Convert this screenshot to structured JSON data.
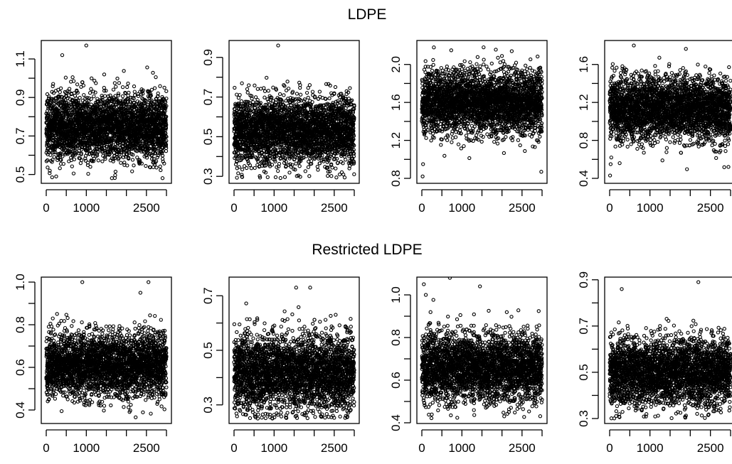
{
  "figure": {
    "rows": [
      {
        "title": "LDPE"
      },
      {
        "title": "Restricted LDPE"
      }
    ]
  },
  "chart_data": [
    {
      "type": "scatter",
      "row_title": "LDPE",
      "x_range": [
        1,
        3000
      ],
      "xticks": [
        0,
        500,
        1000,
        1500,
        2000,
        2500,
        3000
      ],
      "xtick_labels": [
        "0",
        "1000",
        "2500"
      ],
      "xtick_label_values": [
        0,
        1000,
        2500
      ],
      "ylim": [
        0.48,
        1.17
      ],
      "yticks": [
        0.5,
        0.6,
        0.7,
        0.8,
        0.9,
        1.0,
        1.1
      ],
      "ytick_labels": [
        "0.5",
        "0.7",
        "0.9",
        "1.1"
      ],
      "ytick_label_values": [
        0.5,
        0.7,
        0.9,
        1.1
      ],
      "mean": 0.75,
      "sd": 0.085,
      "n_points": 3000,
      "outliers": [
        [
          1000,
          1.17
        ],
        [
          400,
          1.12
        ]
      ]
    },
    {
      "type": "scatter",
      "row_title": "LDPE",
      "x_range": [
        1,
        3000
      ],
      "xticks": [
        0,
        500,
        1000,
        1500,
        2000,
        2500,
        3000
      ],
      "xtick_labels": [
        "0",
        "1000",
        "2500"
      ],
      "xtick_label_values": [
        0,
        1000,
        2500
      ],
      "ylim": [
        0.29,
        0.96
      ],
      "yticks": [
        0.3,
        0.4,
        0.5,
        0.6,
        0.7,
        0.8,
        0.9
      ],
      "ytick_labels": [
        "0.3",
        "0.5",
        "0.7",
        "0.9"
      ],
      "ytick_label_values": [
        0.3,
        0.5,
        0.7,
        0.9
      ],
      "mean": 0.53,
      "sd": 0.085,
      "n_points": 3000,
      "outliers": [
        [
          1100,
          0.96
        ]
      ]
    },
    {
      "type": "scatter",
      "row_title": "LDPE",
      "x_range": [
        1,
        3000
      ],
      "xticks": [
        0,
        500,
        1000,
        1500,
        2000,
        2500,
        3000
      ],
      "xtick_labels": [
        "0",
        "1000",
        "2500"
      ],
      "xtick_label_values": [
        0,
        1000,
        2500
      ],
      "ylim": [
        0.8,
        2.2
      ],
      "yticks": [
        0.8,
        1.0,
        1.2,
        1.4,
        1.6,
        1.8,
        2.0
      ],
      "ytick_labels": [
        "0.8",
        "1.2",
        "1.6",
        "2.0"
      ],
      "ytick_label_values": [
        0.8,
        1.2,
        1.6,
        2.0
      ],
      "mean": 1.6,
      "sd": 0.17,
      "n_points": 3000,
      "outliers": [
        [
          20,
          0.82
        ],
        [
          30,
          0.95
        ],
        [
          2980,
          0.87
        ],
        [
          300,
          2.18
        ]
      ]
    },
    {
      "type": "scatter",
      "row_title": "LDPE",
      "x_range": [
        1,
        3000
      ],
      "xticks": [
        0,
        500,
        1000,
        1500,
        2000,
        2500,
        3000
      ],
      "xtick_labels": [
        "0",
        "1000",
        "2500"
      ],
      "xtick_label_values": [
        0,
        1000,
        2500
      ],
      "ylim": [
        0.4,
        1.8
      ],
      "yticks": [
        0.4,
        0.6,
        0.8,
        1.0,
        1.2,
        1.4,
        1.6
      ],
      "ytick_labels": [
        "0.4",
        "0.8",
        "1.2",
        "1.6"
      ],
      "ytick_label_values": [
        0.4,
        0.8,
        1.2,
        1.6
      ],
      "mean": 1.13,
      "sd": 0.17,
      "n_points": 3000,
      "outliers": [
        [
          10,
          0.43
        ],
        [
          25,
          0.55
        ],
        [
          40,
          0.62
        ],
        [
          600,
          1.8
        ]
      ]
    },
    {
      "type": "scatter",
      "row_title": "Restricted LDPE",
      "x_range": [
        1,
        3000
      ],
      "xticks": [
        0,
        500,
        1000,
        1500,
        2000,
        2500,
        3000
      ],
      "xtick_labels": [
        "0",
        "1000",
        "2500"
      ],
      "xtick_label_values": [
        0,
        1000,
        2500
      ],
      "ylim": [
        0.36,
        1.0
      ],
      "yticks": [
        0.4,
        0.5,
        0.6,
        0.7,
        0.8,
        0.9,
        1.0
      ],
      "ytick_labels": [
        "0.4",
        "0.6",
        "0.8",
        "1.0"
      ],
      "ytick_label_values": [
        0.4,
        0.6,
        0.8,
        1.0
      ],
      "mean": 0.61,
      "sd": 0.075,
      "n_points": 3000,
      "outliers": [
        [
          900,
          1.0
        ],
        [
          2550,
          1.0
        ],
        [
          2350,
          0.95
        ]
      ]
    },
    {
      "type": "scatter",
      "row_title": "Restricted LDPE",
      "x_range": [
        1,
        3000
      ],
      "xticks": [
        0,
        500,
        1000,
        1500,
        2000,
        2500,
        3000
      ],
      "xtick_labels": [
        "0",
        "1000",
        "2500"
      ],
      "xtick_label_values": [
        0,
        1000,
        2500
      ],
      "ylim": [
        0.25,
        0.75
      ],
      "yticks": [
        0.3,
        0.4,
        0.5,
        0.6,
        0.7
      ],
      "ytick_labels": [
        "0.3",
        "0.5",
        "0.7"
      ],
      "ytick_label_values": [
        0.3,
        0.5,
        0.7
      ],
      "mean": 0.42,
      "sd": 0.07,
      "n_points": 3000,
      "outliers": [
        [
          1550,
          0.73
        ],
        [
          1900,
          0.73
        ]
      ]
    },
    {
      "type": "scatter",
      "row_title": "Restricted LDPE",
      "x_range": [
        1,
        3000
      ],
      "xticks": [
        0,
        500,
        1000,
        1500,
        2000,
        2500,
        3000
      ],
      "xtick_labels": [
        "0",
        "1000",
        "2500"
      ],
      "xtick_label_values": [
        0,
        1000,
        2500
      ],
      "ylim": [
        0.42,
        1.06
      ],
      "yticks": [
        0.4,
        0.5,
        0.6,
        0.7,
        0.8,
        0.9,
        1.0
      ],
      "ytick_labels": [
        "0.4",
        "0.6",
        "0.8",
        "1.0"
      ],
      "ytick_label_values": [
        0.4,
        0.6,
        0.8,
        1.0
      ],
      "mean": 0.66,
      "sd": 0.08,
      "n_points": 3000,
      "outliers": [
        [
          50,
          1.05
        ],
        [
          100,
          1.0
        ],
        [
          700,
          1.08
        ],
        [
          1450,
          1.04
        ]
      ]
    },
    {
      "type": "scatter",
      "row_title": "Restricted LDPE",
      "x_range": [
        1,
        3000
      ],
      "xticks": [
        0,
        500,
        1000,
        1500,
        2000,
        2500,
        3000
      ],
      "xtick_labels": [
        "0",
        "1000",
        "2500"
      ],
      "xtick_label_values": [
        0,
        1000,
        2500
      ],
      "ylim": [
        0.3,
        0.89
      ],
      "yticks": [
        0.3,
        0.4,
        0.5,
        0.6,
        0.7,
        0.8,
        0.9
      ],
      "ytick_labels": [
        "0.3",
        "0.5",
        "0.7",
        "0.9"
      ],
      "ytick_label_values": [
        0.3,
        0.5,
        0.7,
        0.9
      ],
      "mean": 0.5,
      "sd": 0.075,
      "n_points": 3000,
      "outliers": [
        [
          2200,
          0.89
        ],
        [
          300,
          0.86
        ]
      ]
    }
  ]
}
